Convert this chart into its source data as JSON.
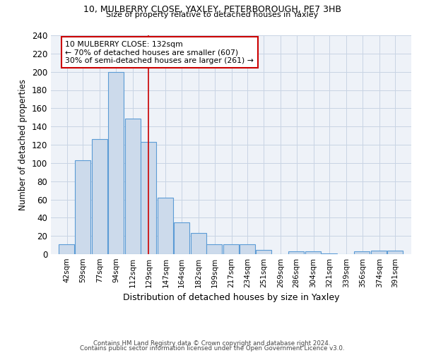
{
  "title1": "10, MULBERRY CLOSE, YAXLEY, PETERBOROUGH, PE7 3HB",
  "title2": "Size of property relative to detached houses in Yaxley",
  "xlabel": "Distribution of detached houses by size in Yaxley",
  "ylabel": "Number of detached properties",
  "footnote1": "Contains HM Land Registry data © Crown copyright and database right 2024.",
  "footnote2": "Contains public sector information licensed under the Open Government Licence v3.0.",
  "annotation_line1": "10 MULBERRY CLOSE: 132sqm",
  "annotation_line2": "← 70% of detached houses are smaller (607)",
  "annotation_line3": "30% of semi-detached houses are larger (261) →",
  "red_line_x": 129,
  "categories": [
    "42sqm",
    "59sqm",
    "77sqm",
    "94sqm",
    "112sqm",
    "129sqm",
    "147sqm",
    "164sqm",
    "182sqm",
    "199sqm",
    "217sqm",
    "234sqm",
    "251sqm",
    "269sqm",
    "286sqm",
    "304sqm",
    "321sqm",
    "339sqm",
    "356sqm",
    "374sqm",
    "391sqm"
  ],
  "bin_left": [
    33.5,
    50.5,
    68.5,
    85.5,
    103.5,
    120.5,
    138.5,
    155.5,
    173.5,
    190.5,
    208.5,
    225.5,
    242.5,
    260.5,
    277.5,
    295.5,
    312.5,
    330.5,
    347.5,
    365.5,
    382.5
  ],
  "bin_width": 17,
  "values": [
    11,
    103,
    126,
    200,
    149,
    123,
    62,
    35,
    23,
    11,
    11,
    11,
    5,
    0,
    3,
    3,
    1,
    0,
    3,
    4,
    4
  ],
  "bar_facecolor": "#ccdaeb",
  "bar_edgecolor": "#5b9bd5",
  "grid_color": "#c8d4e4",
  "background_color": "#eef2f8",
  "red_line_color": "#cc0000",
  "annotation_box_edgecolor": "#cc0000",
  "ylim": [
    0,
    240
  ],
  "xlim": [
    25,
    408
  ]
}
